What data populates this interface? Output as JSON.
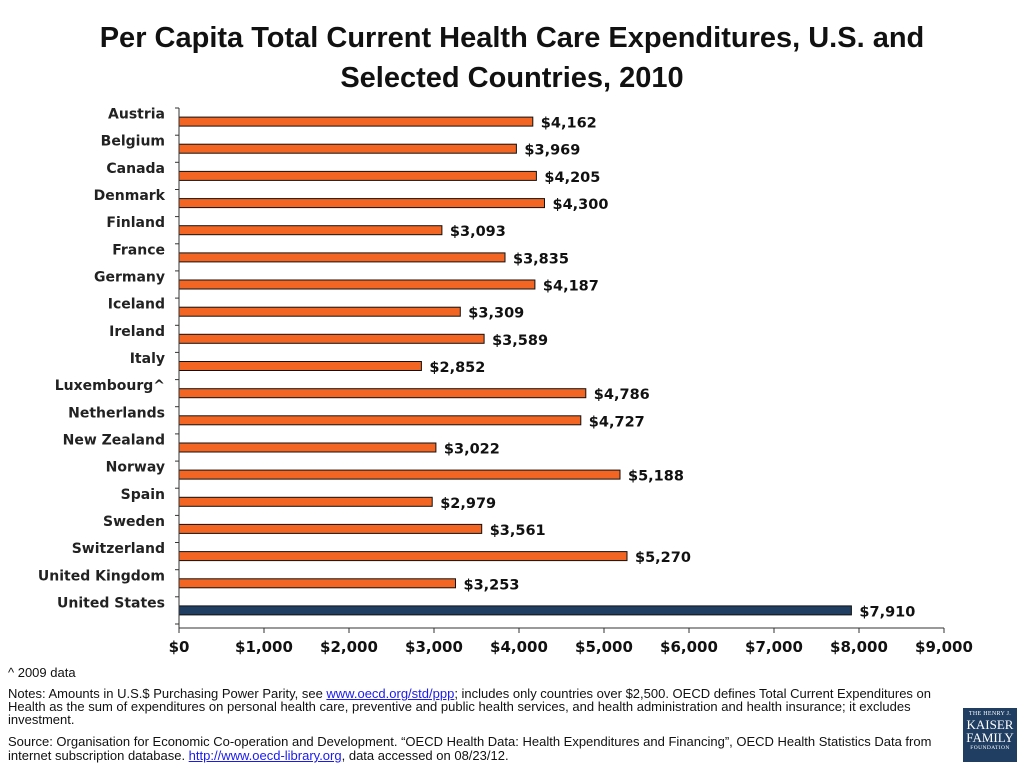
{
  "title": {
    "line1": "Per Capita Total Current Health Care Expenditures, U.S. and",
    "line2": "Selected Countries, 2010"
  },
  "chart_data": {
    "type": "bar",
    "orientation": "horizontal",
    "title": "Per Capita Total Current Health Care Expenditures, U.S. and Selected Countries, 2010",
    "categories": [
      "Austria",
      "Belgium",
      "Canada",
      "Denmark",
      "Finland",
      "France",
      "Germany",
      "Iceland",
      "Ireland",
      "Italy",
      "Luxembourg^",
      "Netherlands",
      "New Zealand",
      "Norway",
      "Spain",
      "Sweden",
      "Switzerland",
      "United Kingdom",
      "United States"
    ],
    "values": [
      4162,
      3969,
      4205,
      4300,
      3093,
      3835,
      4187,
      3309,
      3589,
      2852,
      4786,
      4727,
      3022,
      5188,
      2979,
      3561,
      5270,
      3253,
      7910
    ],
    "value_labels": [
      "$4,162",
      "$3,969",
      "$4,205",
      "$4,300",
      "$3,093",
      "$3,835",
      "$4,187",
      "$3,309",
      "$3,589",
      "$2,852",
      "$4,786",
      "$4,727",
      "$3,022",
      "$5,188",
      "$2,979",
      "$3,561",
      "$5,270",
      "$3,253",
      "$7,910"
    ],
    "xlim": [
      0,
      9000
    ],
    "xticks": [
      0,
      1000,
      2000,
      3000,
      4000,
      5000,
      6000,
      7000,
      8000,
      9000
    ],
    "xtick_labels": [
      "$0",
      "$1,000",
      "$2,000",
      "$3,000",
      "$4,000",
      "$5,000",
      "$6,000",
      "$7,000",
      "$8,000",
      "$9,000"
    ],
    "xlabel": "",
    "ylabel": "",
    "grid": false,
    "colors": {
      "default": "#f26522",
      "highlight": "#1f3e61",
      "border": "#111111"
    },
    "highlight_category": "United States"
  },
  "footnote": "^ 2009 data",
  "notes": {
    "prefix": "Notes:  Amounts in U.S.$ Purchasing Power Parity, see ",
    "link": "www.oecd.org/std/ppp",
    "suffix": "; includes only countries over $2,500.  OECD defines Total Current Expenditures on Health as the sum of expenditures on personal health care, preventive and public health services, and health administration and health insurance; it excludes investment."
  },
  "source": {
    "prefix": "Source:  Organisation for Economic Co-operation and Development. “OECD Health Data: Health Expenditures and Financing”, OECD Health Statistics Data from internet subscription database. ",
    "link": "http://www.oecd-library.org",
    "suffix": ", data accessed on 08/23/12."
  },
  "logo": {
    "line1": "THE HENRY J.",
    "line2": "KAISER",
    "line3": "FAMILY",
    "line4": "FOUNDATION"
  }
}
